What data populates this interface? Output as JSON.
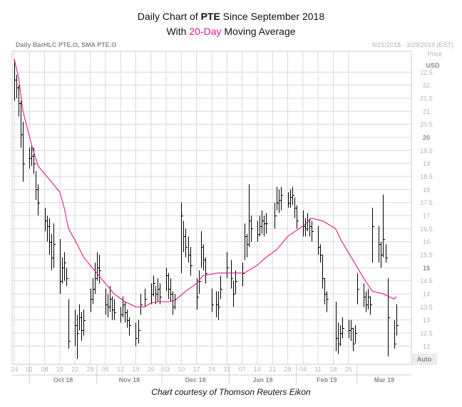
{
  "title": {
    "line1_pre": "Daily Chart of ",
    "line1_bold": "PTE",
    "line1_post": " Since September 2018",
    "line2_pre": "With ",
    "line2_accent": "20-Day",
    "line2_post": " Moving Average"
  },
  "header": {
    "left": "Daily BarHLC PTE.O, SMA PTE.O",
    "right": "9/21/2018 - 3/29/2019 (EST)"
  },
  "axis": {
    "price_label": "Price",
    "currency_label": "USD",
    "auto_label": "Auto"
  },
  "credit": "Chart courtesy of Thomson Reuters Eikon",
  "colors": {
    "bars": "#000000",
    "sma": "#e0198a",
    "grid": "#d9d9d9",
    "axis_text": "#b4b4b4"
  },
  "chart_data": {
    "type": "line",
    "title": "Daily Chart of PTE Since September 2018 With 20-Day Moving Average",
    "xlabel": "",
    "ylabel": "Price USD",
    "ylim": [
      11.3,
      23.3
    ],
    "grid": true,
    "y_ticks": [
      "12",
      "12.5",
      "13",
      "13.5",
      "14",
      "14.5",
      "15",
      "15.5",
      "16",
      "16.5",
      "17",
      "17.5",
      "18",
      "18.5",
      "19",
      "19.5",
      "20",
      "20.5",
      "21",
      "21.5",
      "22",
      "22.5"
    ],
    "y_ticks_bold": [
      "15",
      "20"
    ],
    "day_ticks": [
      "24",
      "01",
      "08",
      "15",
      "22",
      "29",
      "05",
      "12",
      "19",
      "26",
      "03",
      "10",
      "17",
      "24",
      "31",
      "07",
      "14",
      "21",
      "28",
      "04",
      "11",
      "18",
      "25"
    ],
    "months": [
      "Oct 18",
      "Nov 18",
      "Dec 18",
      "Jan 19",
      "Feb 19",
      "Mar 19"
    ],
    "x_range": [
      "2018-09-24",
      "2019-03-25"
    ],
    "bars_hlc": [
      [
        "2018-09-24",
        23.0,
        21.4,
        22.2
      ],
      [
        "2018-09-25",
        22.4,
        21.5,
        21.9
      ],
      [
        "2018-09-26",
        22.0,
        20.8,
        21.3
      ],
      [
        "2018-09-27",
        21.4,
        19.6,
        20.1
      ],
      [
        "2018-09-28",
        20.6,
        18.3,
        19.0
      ],
      [
        "2018-10-01",
        19.6,
        18.8,
        19.2
      ],
      [
        "2018-10-02",
        19.7,
        18.9,
        19.3
      ],
      [
        "2018-10-03",
        19.6,
        18.6,
        19.0
      ],
      [
        "2018-10-04",
        18.7,
        17.6,
        18.0
      ],
      [
        "2018-10-05",
        18.2,
        17.0,
        17.5
      ],
      [
        "2018-10-08",
        17.3,
        16.4,
        16.8
      ],
      [
        "2018-10-09",
        17.0,
        16.0,
        16.6
      ],
      [
        "2018-10-10",
        16.9,
        15.5,
        16.0
      ],
      [
        "2018-10-11",
        16.3,
        14.9,
        15.4
      ],
      [
        "2018-10-12",
        16.7,
        15.0,
        15.9
      ],
      [
        "2018-10-15",
        16.1,
        14.0,
        14.5
      ],
      [
        "2018-10-16",
        15.4,
        14.4,
        15.0
      ],
      [
        "2018-10-17",
        15.6,
        14.5,
        15.2
      ],
      [
        "2018-10-18",
        15.0,
        14.3,
        14.6
      ],
      [
        "2018-10-19",
        13.8,
        11.9,
        12.2
      ],
      [
        "2018-10-22",
        13.4,
        12.0,
        12.8
      ],
      [
        "2018-10-23",
        13.2,
        11.5,
        12.5
      ],
      [
        "2018-10-24",
        13.6,
        12.6,
        13.1
      ],
      [
        "2018-10-25",
        13.3,
        12.2,
        12.6
      ],
      [
        "2018-10-26",
        13.4,
        12.4,
        13.0
      ],
      [
        "2018-10-29",
        14.2,
        13.3,
        13.8
      ],
      [
        "2018-10-30",
        14.6,
        13.6,
        14.2
      ],
      [
        "2018-10-31",
        15.2,
        14.0,
        14.6
      ],
      [
        "2018-11-01",
        15.6,
        14.5,
        15.0
      ],
      [
        "2018-11-02",
        15.5,
        14.4,
        14.9
      ],
      [
        "2018-11-05",
        14.2,
        13.2,
        13.6
      ],
      [
        "2018-11-06",
        14.0,
        13.1,
        13.5
      ],
      [
        "2018-11-07",
        14.3,
        13.3,
        13.8
      ],
      [
        "2018-11-08",
        13.9,
        13.0,
        13.4
      ],
      [
        "2018-11-09",
        13.8,
        13.0,
        13.3
      ],
      [
        "2018-11-12",
        13.5,
        12.9,
        13.2
      ],
      [
        "2018-11-13",
        13.9,
        13.1,
        13.6
      ],
      [
        "2018-11-14",
        13.7,
        12.9,
        13.3
      ],
      [
        "2018-11-15",
        13.4,
        12.7,
        13.0
      ],
      [
        "2018-11-16",
        13.1,
        12.4,
        12.8
      ],
      [
        "2018-11-19",
        12.9,
        12.0,
        12.3
      ],
      [
        "2018-11-20",
        13.0,
        12.1,
        12.6
      ],
      [
        "2018-11-21",
        14.0,
        13.2,
        13.6
      ],
      [
        "2018-11-23",
        14.2,
        13.5,
        13.8
      ],
      [
        "2018-11-26",
        14.4,
        13.6,
        14.0
      ],
      [
        "2018-11-27",
        14.7,
        13.9,
        14.4
      ],
      [
        "2018-11-28",
        14.3,
        13.6,
        14.0
      ],
      [
        "2018-11-29",
        14.6,
        13.7,
        14.2
      ],
      [
        "2018-11-30",
        14.4,
        13.6,
        13.9
      ],
      [
        "2018-12-03",
        15.0,
        14.1,
        14.7
      ],
      [
        "2018-12-04",
        14.8,
        13.8,
        14.2
      ],
      [
        "2018-12-05",
        14.6,
        13.7,
        14.0
      ],
      [
        "2018-12-06",
        14.1,
        13.2,
        13.5
      ],
      [
        "2018-12-07",
        14.0,
        13.4,
        13.8
      ],
      [
        "2018-12-10",
        17.5,
        14.8,
        17.0
      ],
      [
        "2018-12-11",
        16.8,
        15.6,
        16.2
      ],
      [
        "2018-12-12",
        16.5,
        15.4,
        15.8
      ],
      [
        "2018-12-13",
        16.2,
        15.2,
        15.5
      ],
      [
        "2018-12-14",
        15.8,
        14.7,
        15.1
      ],
      [
        "2018-12-17",
        14.6,
        13.4,
        13.9
      ],
      [
        "2018-12-18",
        14.9,
        14.0,
        14.5
      ],
      [
        "2018-12-19",
        16.4,
        15.0,
        15.8
      ],
      [
        "2018-12-20",
        15.9,
        14.9,
        15.3
      ],
      [
        "2018-12-21",
        15.4,
        14.4,
        14.8
      ],
      [
        "2018-12-24",
        14.2,
        13.3,
        13.6
      ],
      [
        "2018-12-26",
        14.1,
        13.1,
        13.6
      ],
      [
        "2018-12-27",
        14.1,
        13.0,
        13.5
      ],
      [
        "2018-12-28",
        14.7,
        13.8,
        14.2
      ],
      [
        "2018-12-31",
        15.6,
        14.6,
        15.0
      ],
      [
        "2019-01-02",
        15.3,
        14.2,
        14.6
      ],
      [
        "2019-01-03",
        14.5,
        13.5,
        14.0
      ],
      [
        "2019-01-04",
        14.9,
        14.0,
        14.5
      ],
      [
        "2019-01-07",
        15.2,
        14.3,
        14.8
      ],
      [
        "2019-01-08",
        16.7,
        15.3,
        16.2
      ],
      [
        "2019-01-09",
        16.3,
        15.4,
        15.9
      ],
      [
        "2019-01-10",
        18.2,
        15.8,
        16.8
      ],
      [
        "2019-01-11",
        17.0,
        16.0,
        16.5
      ],
      [
        "2019-01-14",
        16.8,
        16.0,
        16.3
      ],
      [
        "2019-01-15",
        17.0,
        16.2,
        16.6
      ],
      [
        "2019-01-16",
        17.2,
        16.3,
        16.8
      ],
      [
        "2019-01-17",
        17.0,
        16.2,
        16.7
      ],
      [
        "2019-01-18",
        17.1,
        16.3,
        16.7
      ],
      [
        "2019-01-22",
        17.5,
        16.5,
        17.0
      ],
      [
        "2019-01-23",
        18.1,
        17.2,
        17.5
      ],
      [
        "2019-01-24",
        18.0,
        17.1,
        17.6
      ],
      [
        "2019-01-25",
        18.1,
        17.2,
        17.8
      ],
      [
        "2019-01-28",
        17.9,
        17.3,
        17.5
      ],
      [
        "2019-01-29",
        18.0,
        17.3,
        17.7
      ],
      [
        "2019-01-30",
        18.1,
        17.4,
        17.8
      ],
      [
        "2019-01-31",
        17.7,
        16.9,
        17.3
      ],
      [
        "2019-02-01",
        17.4,
        16.5,
        16.8
      ],
      [
        "2019-02-04",
        17.2,
        16.2,
        16.6
      ],
      [
        "2019-02-05",
        16.9,
        16.2,
        16.5
      ],
      [
        "2019-02-06",
        17.1,
        16.4,
        16.8
      ],
      [
        "2019-02-07",
        16.9,
        16.2,
        16.6
      ],
      [
        "2019-02-08",
        16.8,
        16.0,
        16.4
      ],
      [
        "2019-02-11",
        16.6,
        15.5,
        15.8
      ],
      [
        "2019-02-12",
        15.9,
        15.2,
        15.5
      ],
      [
        "2019-02-13",
        15.5,
        14.2,
        14.6
      ],
      [
        "2019-02-14",
        14.6,
        13.6,
        14.0
      ],
      [
        "2019-02-15",
        14.1,
        13.3,
        13.8
      ],
      [
        "2019-02-19",
        13.7,
        11.8,
        12.3
      ],
      [
        "2019-02-20",
        12.9,
        11.7,
        12.1
      ],
      [
        "2019-02-21",
        12.8,
        12.0,
        12.5
      ],
      [
        "2019-02-22",
        13.1,
        12.3,
        12.7
      ],
      [
        "2019-02-25",
        13.0,
        12.3,
        12.6
      ],
      [
        "2019-02-26",
        13.0,
        12.2,
        12.7
      ],
      [
        "2019-02-27",
        12.7,
        11.8,
        12.1
      ],
      [
        "2019-02-28",
        12.8,
        12.1,
        12.5
      ],
      [
        "2019-03-01",
        14.8,
        13.6,
        14.2
      ],
      [
        "2019-03-04",
        14.4,
        13.5,
        13.9
      ],
      [
        "2019-03-05",
        14.1,
        13.3,
        13.6
      ],
      [
        "2019-03-06",
        14.2,
        13.4,
        13.9
      ],
      [
        "2019-03-07",
        13.9,
        13.2,
        13.6
      ],
      [
        "2019-03-08",
        17.3,
        15.2,
        16.6
      ],
      [
        "2019-03-11",
        16.6,
        15.2,
        15.9
      ],
      [
        "2019-03-12",
        16.0,
        15.0,
        15.5
      ],
      [
        "2019-03-13",
        17.8,
        15.4,
        16.1
      ],
      [
        "2019-03-14",
        15.9,
        15.2,
        15.4
      ],
      [
        "2019-03-15",
        14.6,
        11.6,
        13.1
      ],
      [
        "2019-03-18",
        13.0,
        11.9,
        12.1
      ],
      [
        "2019-03-19",
        13.6,
        12.4,
        12.8
      ]
    ],
    "series": [
      {
        "name": "SMA",
        "points": [
          [
            "2018-09-24",
            23.0
          ],
          [
            "2018-09-26",
            22.3
          ],
          [
            "2018-09-28",
            21.0
          ],
          [
            "2018-10-02",
            19.7
          ],
          [
            "2018-10-05",
            18.9
          ],
          [
            "2018-10-09",
            18.5
          ],
          [
            "2018-10-12",
            18.2
          ],
          [
            "2018-10-15",
            17.9
          ],
          [
            "2018-10-17",
            17.3
          ],
          [
            "2018-10-19",
            16.5
          ],
          [
            "2018-10-23",
            15.9
          ],
          [
            "2018-10-26",
            15.4
          ],
          [
            "2018-10-31",
            14.9
          ],
          [
            "2018-11-05",
            14.4
          ],
          [
            "2018-11-09",
            14.0
          ],
          [
            "2018-11-14",
            13.7
          ],
          [
            "2018-11-19",
            13.5
          ],
          [
            "2018-11-23",
            13.5
          ],
          [
            "2018-11-26",
            13.65
          ],
          [
            "2018-11-29",
            13.7
          ],
          [
            "2018-12-04",
            13.7
          ],
          [
            "2018-12-07",
            13.75
          ],
          [
            "2018-12-12",
            14.1
          ],
          [
            "2018-12-17",
            14.4
          ],
          [
            "2018-12-20",
            14.7
          ],
          [
            "2018-12-27",
            14.8
          ],
          [
            "2019-01-03",
            14.8
          ],
          [
            "2019-01-08",
            14.8
          ],
          [
            "2019-01-14",
            15.1
          ],
          [
            "2019-01-18",
            15.4
          ],
          [
            "2019-01-23",
            15.7
          ],
          [
            "2019-01-28",
            16.2
          ],
          [
            "2019-02-04",
            16.6
          ],
          [
            "2019-02-08",
            16.9
          ],
          [
            "2019-02-13",
            16.8
          ],
          [
            "2019-02-19",
            16.5
          ],
          [
            "2019-02-22",
            16.0
          ],
          [
            "2019-02-27",
            15.3
          ],
          [
            "2019-03-04",
            14.6
          ],
          [
            "2019-03-08",
            14.1
          ],
          [
            "2019-03-13",
            14.0
          ],
          [
            "2019-03-18",
            13.8
          ],
          [
            "2019-03-19",
            13.9
          ]
        ]
      }
    ]
  }
}
